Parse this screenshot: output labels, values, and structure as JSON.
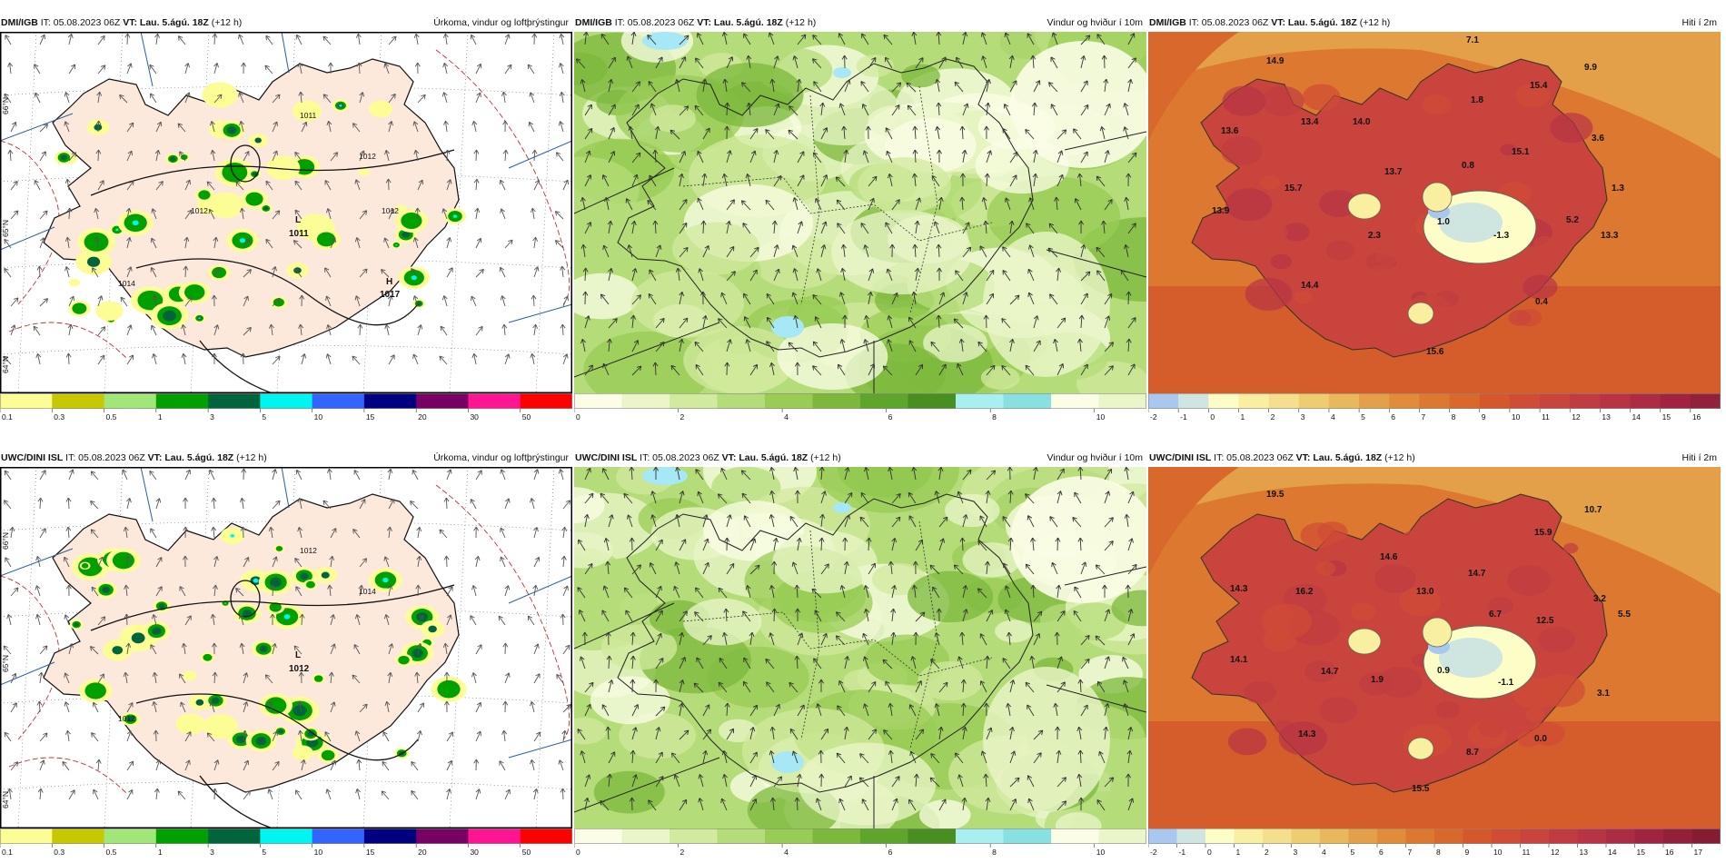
{
  "rows": [
    {
      "model": "DMI/IGB",
      "init": "IT: 05.08.2023 06Z",
      "valid": "VT: Lau. 5.ágú. 18Z",
      "lead": "(+12 h)",
      "pressure_labels": [
        "1012",
        "1014",
        "1011",
        "1012",
        "1012"
      ],
      "temps": [
        "7.1",
        "14.9",
        "9.9",
        "15.4",
        "1.8",
        "13.6",
        "13.4",
        "14.0",
        "3.6",
        "15.1",
        "0.8",
        "13.7",
        "1.3",
        "15.7",
        "13.9",
        "1.0",
        "5.2",
        "2.3",
        "-1.3",
        "13.3",
        "14.4",
        "0.4",
        "15.6"
      ]
    },
    {
      "model": "UWC/DINI ISL",
      "init": "IT: 05.08.2023 06Z",
      "valid": "VT: Lau. 5.ágú. 18Z",
      "lead": "(+12 h)",
      "pressure_labels": [
        "1014",
        "1012",
        "1012"
      ],
      "temps": [
        "19.5",
        "10.7",
        "15.9",
        "14.6",
        "14.7",
        "14.3",
        "16.2",
        "13.0",
        "3.2",
        "6.7",
        "5.5",
        "12.5",
        "14.1",
        "14.7",
        "1.9",
        "0.9",
        "-1.1",
        "3.1",
        "14.3",
        "8.7",
        "0.0",
        "15.5"
      ]
    }
  ],
  "fields": [
    {
      "title": "Úrkoma, vindur og loftþrýstingur"
    },
    {
      "title": "Vindur og hviður í 10m"
    },
    {
      "title": "Hiti í 2m"
    }
  ],
  "precip_bar": {
    "ticks": [
      "0.1",
      "0.3",
      "0.5",
      "1",
      "3",
      "5",
      "10",
      "15",
      "20",
      "30",
      "50"
    ],
    "colors": [
      "#fdfd96",
      "#c8c800",
      "#a0e678",
      "#00a000",
      "#00643c",
      "#00f5f0",
      "#3264ff",
      "#000080",
      "#780064",
      "#ff1493",
      "#ff0000"
    ]
  },
  "wind_bar": {
    "ticks": [
      "0",
      "2",
      "4",
      "6",
      "8",
      "10"
    ],
    "colors": [
      "#fbfde6",
      "#eaf5c8",
      "#d2ea9e",
      "#b4dc78",
      "#98cc54",
      "#7cb83c",
      "#5ea52c",
      "#468f20",
      "#a8f0f0",
      "#88e0e0"
    ]
  },
  "temp_bar_top": {
    "ticks": [
      "-2",
      "-1",
      "0",
      "1",
      "2",
      "3",
      "4",
      "5",
      "6",
      "7",
      "8",
      "9",
      "10",
      "11",
      "12",
      "13",
      "14",
      "15",
      "16"
    ],
    "colors": [
      "#a8c8f0",
      "#cfe6e0",
      "#fdfdc8",
      "#f8f0a0",
      "#f4e08c",
      "#eecc70",
      "#e8b85c",
      "#e4a048",
      "#e08c38",
      "#dc7830",
      "#d8682c",
      "#d4582a",
      "#d04c34",
      "#c8443c",
      "#c03c40",
      "#b83444",
      "#ac2c44",
      "#a02440",
      "#92203a"
    ]
  },
  "temp_bar_bottom": {
    "ticks": [
      "-2",
      "-1",
      "0",
      "1",
      "2",
      "3",
      "4",
      "5",
      "6",
      "7",
      "8",
      "9",
      "10",
      "11",
      "12",
      "13",
      "14",
      "15",
      "16",
      "17"
    ],
    "colors": [
      "#a8c8f0",
      "#cfe6e0",
      "#fdfdc8",
      "#f8f0a0",
      "#f4e08c",
      "#eecc70",
      "#e8b85c",
      "#e4a048",
      "#e08c38",
      "#dc7830",
      "#d8682c",
      "#d4582a",
      "#d04c34",
      "#c8443c",
      "#c03c40",
      "#b83444",
      "#ac2c44",
      "#a02440",
      "#92203a",
      "#861c34"
    ]
  },
  "lat_labels": [
    "66°N",
    "65°N",
    "64°N"
  ],
  "highs_lows": {
    "low": "L",
    "high": "H",
    "low_value_top": "1011",
    "high_value_top": "1017",
    "low_value_bottom": "1012"
  }
}
